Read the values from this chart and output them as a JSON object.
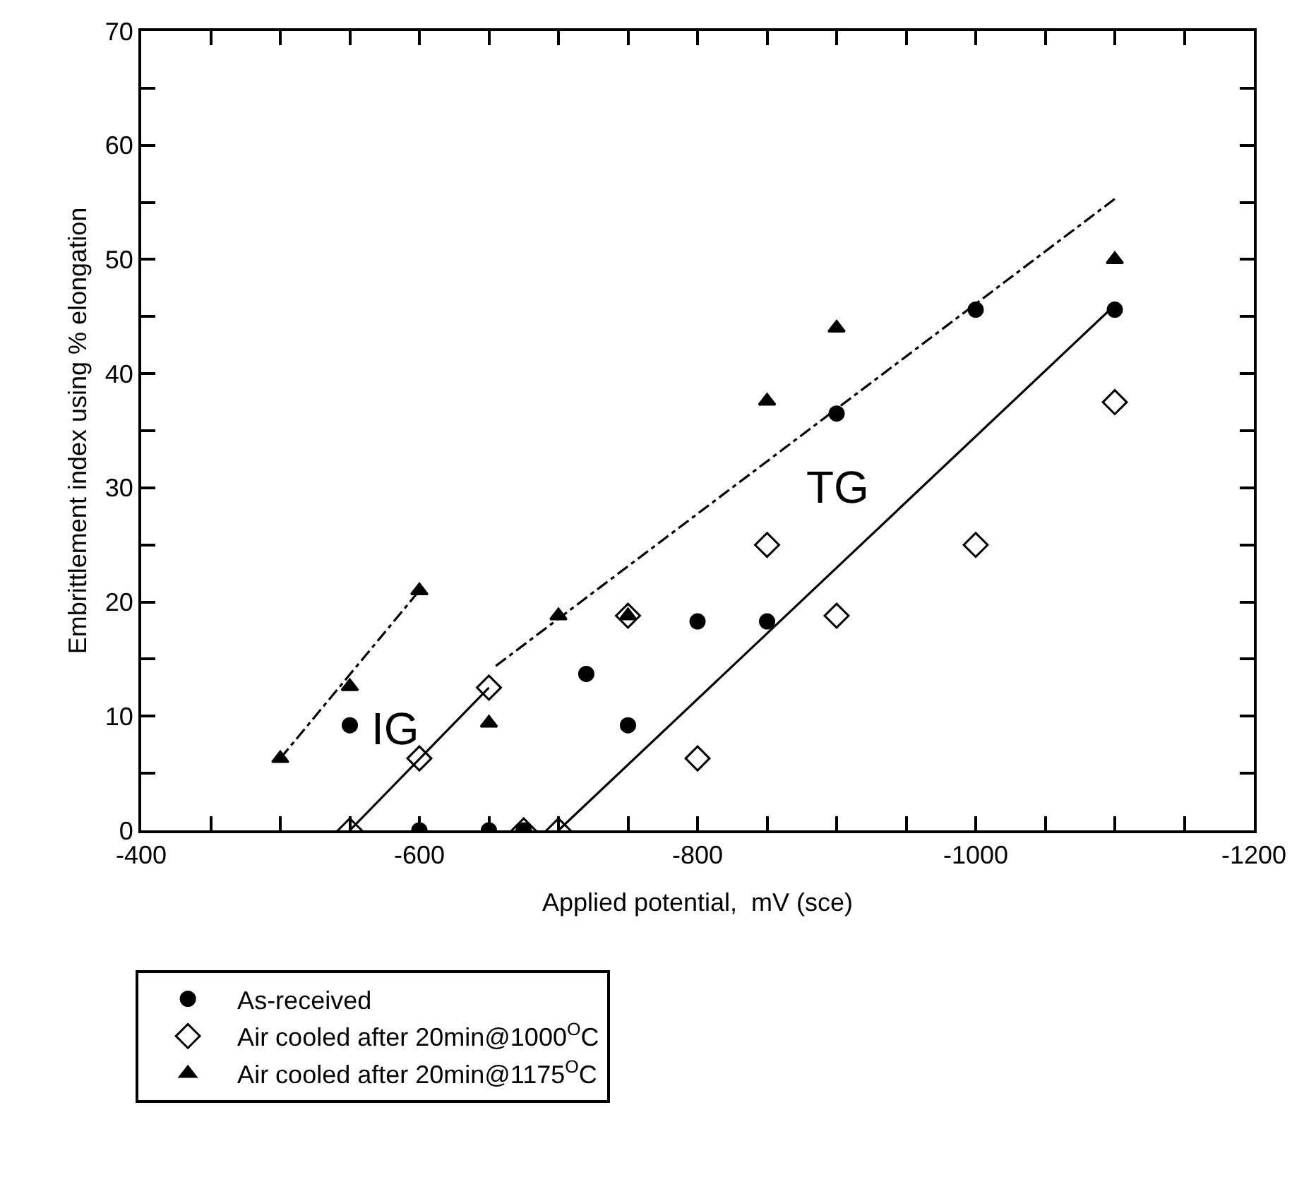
{
  "chart_data": {
    "type": "scatter",
    "xlabel": "Applied potential,  mV (sce)",
    "ylabel": "Embrittlement index using % elongation",
    "xlim": [
      -400,
      -1200
    ],
    "ylim": [
      0,
      70
    ],
    "xticks": [
      -400,
      {
        "value": -450,
        "label": null
      },
      {
        "value": -500,
        "label": null
      },
      {
        "value": -550,
        "label": null
      },
      -600,
      {
        "value": -650,
        "label": null
      },
      {
        "value": -700,
        "label": null
      },
      {
        "value": -750,
        "label": null
      },
      -800,
      {
        "value": -850,
        "label": null
      },
      {
        "value": -900,
        "label": null
      },
      {
        "value": -950,
        "label": null
      },
      -1000,
      {
        "value": -1050,
        "label": null
      },
      {
        "value": -1100,
        "label": null
      },
      {
        "value": -1150,
        "label": null
      },
      -1200
    ],
    "yticks": [
      0,
      {
        "value": 5,
        "label": null
      },
      10,
      {
        "value": 15,
        "label": null
      },
      20,
      {
        "value": 25,
        "label": null
      },
      30,
      {
        "value": 35,
        "label": null
      },
      40,
      {
        "value": 45,
        "label": null
      },
      50,
      {
        "value": 55,
        "label": null
      },
      60,
      {
        "value": 65,
        "label": null
      },
      70
    ],
    "legend": "bottom left",
    "series": [
      {
        "name": "As-received",
        "color": "#000000",
        "marker": "circle",
        "x": [
          -550,
          -600,
          -650,
          -675,
          -720,
          -750,
          -800,
          -850,
          -900,
          -1000,
          -1100
        ],
        "values": [
          9.2,
          0,
          0,
          0,
          13.7,
          9.2,
          18.3,
          18.3,
          36.5,
          45.6,
          45.6
        ]
      },
      {
        "name": "Air cooled after 20min@1000$^{O}$C",
        "color": "#000000",
        "marker": "diamond",
        "x": [
          -550,
          -600,
          -650,
          -675,
          -700,
          -750,
          -800,
          -850,
          -900,
          -1000,
          -1100
        ],
        "values": [
          0,
          6.3,
          12.5,
          0,
          0,
          18.8,
          6.3,
          25,
          18.8,
          25,
          37.5
        ]
      },
      {
        "name": "Air cooled after 20min@1175$^{O}$C",
        "color": "#000000",
        "marker": "triangle",
        "x": [
          -500,
          -550,
          -600,
          -650,
          -700,
          -750,
          -850,
          -900,
          -1100
        ],
        "values": [
          6.3,
          12.6,
          21,
          9.4,
          18.8,
          18.8,
          37.6,
          44,
          50
        ]
      },
      {
        "type": "line",
        "color": "#000000",
        "line_style": "solid",
        "x": [
          -550,
          -650
        ],
        "values": [
          0,
          12.5
        ]
      },
      {
        "type": "line",
        "color": "#000000",
        "line_style": "solid",
        "x": [
          -700,
          -1100
        ],
        "values": [
          0,
          46
        ]
      },
      {
        "type": "line",
        "color": "#000000",
        "line_style": "dashdot",
        "x": [
          -500,
          -600
        ],
        "values": [
          6.3,
          21
        ]
      },
      {
        "type": "line",
        "color": "#000000",
        "line_style": "dashdot",
        "x": [
          -655,
          -1100
        ],
        "values": [
          14.4,
          55.3
        ]
      }
    ],
    "annotations": [
      "IG",
      "TG"
    ]
  }
}
